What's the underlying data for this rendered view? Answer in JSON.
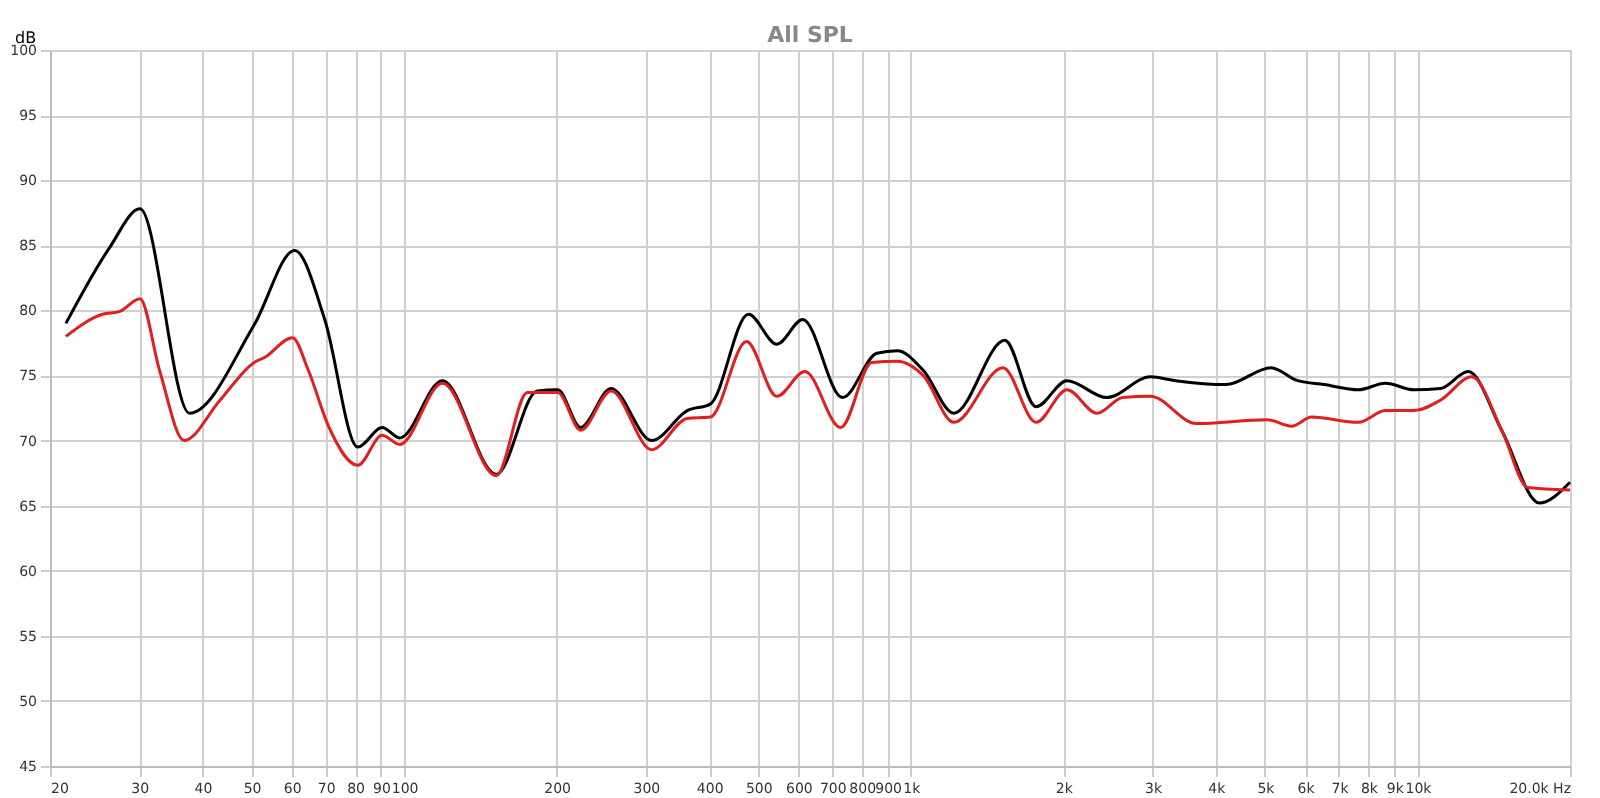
{
  "chart_data": {
    "type": "line",
    "title": "All SPL",
    "ylabel": "dB",
    "log": "x",
    "grid": true,
    "line_style": "solid",
    "marker": "none",
    "xlim": [
      20,
      20000
    ],
    "ylim": [
      45,
      100
    ],
    "xticks": [
      20,
      30,
      40,
      50,
      60,
      70,
      80,
      90,
      100,
      200,
      300,
      400,
      500,
      600,
      700,
      800,
      900,
      {
        "value": 1000,
        "label": "1k"
      },
      {
        "value": 2000,
        "label": "2k"
      },
      {
        "value": 3000,
        "label": "3k"
      },
      {
        "value": 4000,
        "label": "4k"
      },
      {
        "value": 5000,
        "label": "5k"
      },
      {
        "value": 6000,
        "label": "6k"
      },
      {
        "value": 7000,
        "label": "7k"
      },
      {
        "value": 8000,
        "label": "8k"
      },
      {
        "value": 9000,
        "label": "9k"
      },
      {
        "value": 10000,
        "label": "10k"
      },
      {
        "value": 20000,
        "label": "20.0k Hz"
      }
    ],
    "yticks": [
      45,
      50,
      55,
      60,
      65,
      70,
      75,
      80,
      85,
      90,
      95,
      100
    ],
    "series": [
      {
        "color": "#000000",
        "x": [
          21.5,
          26.2,
          30.1,
          37.7,
          50.6,
          60.8,
          69.7,
          81,
          90.5,
          98,
          119,
          152,
          183,
          201,
          223,
          256,
          308,
          362,
          402,
          478,
          544,
          612,
          733,
          857,
          940,
          1058,
          1216,
          1533,
          1767,
          2033,
          2435,
          2970,
          3330,
          4190,
          5140,
          5800,
          6540,
          7650,
          8640,
          9840,
          11100,
          12600,
          14700,
          17400,
          20000
        ],
        "values": [
          79.0,
          84.8,
          87.8,
          72.1,
          78.9,
          84.6,
          79.3,
          69.5,
          71.0,
          70.2,
          74.6,
          67.4,
          73.8,
          73.9,
          71.0,
          74.0,
          70.0,
          72.3,
          72.8,
          79.7,
          77.4,
          79.3,
          73.3,
          76.7,
          76.9,
          75.4,
          72.1,
          77.7,
          72.6,
          74.6,
          73.3,
          74.9,
          74.6,
          74.3,
          75.6,
          74.6,
          74.3,
          73.9,
          74.4,
          73.9,
          74.0,
          75.3,
          70.7,
          65.2,
          66.8
        ]
      },
      {
        "color": "#e0201e",
        "x": [
          21.5,
          25.4,
          27.4,
          30.1,
          32.9,
          36.8,
          43.3,
          50.6,
          53.1,
          60.2,
          64.7,
          70.9,
          81,
          90.5,
          98,
          119,
          152,
          175,
          201,
          223,
          256,
          308,
          362,
          402,
          474,
          544,
          618,
          727,
          837,
          940,
          1058,
          1216,
          1520,
          1767,
          2033,
          2330,
          2620,
          2970,
          3660,
          5050,
          5640,
          6180,
          7650,
          8640,
          9840,
          11100,
          12800,
          14700,
          16500,
          20000
        ],
        "values": [
          78.0,
          79.7,
          79.9,
          80.9,
          75.4,
          70.0,
          73.1,
          76.0,
          76.4,
          77.9,
          75.4,
          71.1,
          68.1,
          70.4,
          69.7,
          74.4,
          67.3,
          73.7,
          73.7,
          70.8,
          73.8,
          69.3,
          71.7,
          71.8,
          77.6,
          73.4,
          75.3,
          71.0,
          76.0,
          76.1,
          75.0,
          71.4,
          75.6,
          71.4,
          73.9,
          72.1,
          73.3,
          73.4,
          71.3,
          71.6,
          71.1,
          71.8,
          71.4,
          72.3,
          72.3,
          73.1,
          74.9,
          70.7,
          66.4,
          66.2
        ]
      }
    ]
  }
}
